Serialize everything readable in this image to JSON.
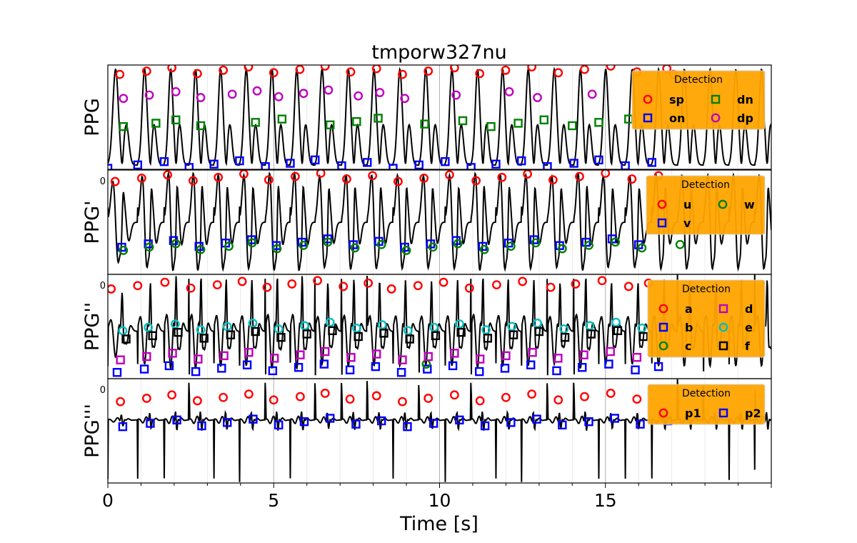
{
  "chart_data": {
    "type": "line",
    "title": "tmporw327nu",
    "xlabel": "Time [s]",
    "xlim": [
      0,
      20
    ],
    "xticks": [
      0,
      5,
      10,
      15
    ],
    "xtick_labels": [
      "0",
      "5",
      "10",
      "15"
    ],
    "grid": true,
    "colors": {
      "signal": "#000000",
      "legend_bg": "#FFA500",
      "red": "#FF0000",
      "blue": "#0000FF",
      "green": "#008000",
      "magenta": "#BF00BF",
      "cyan": "#00BFBF",
      "black": "#000000"
    },
    "panels": [
      {
        "ylabel": "PPG",
        "ytick_label": "",
        "legend": {
          "title": "Detection",
          "entries": [
            {
              "label": "sp",
              "marker": "circle",
              "color": "red"
            },
            {
              "label": "dn",
              "marker": "square",
              "color": "green"
            },
            {
              "label": "on",
              "marker": "square",
              "color": "blue"
            },
            {
              "label": "dp",
              "marker": "circle",
              "color": "magenta"
            }
          ]
        },
        "markers": {
          "sp": [
            0.36,
            1.17,
            1.93,
            2.7,
            3.48,
            4.24,
            5.0,
            5.79,
            6.55,
            7.32,
            8.1,
            8.88,
            9.66,
            10.45,
            11.21,
            11.99,
            12.78,
            13.58,
            14.37,
            15.16,
            15.95,
            16.85,
            17.05
          ],
          "on": [
            0.0,
            0.9,
            1.7,
            2.45,
            3.2,
            3.97,
            4.75,
            5.5,
            6.25,
            7.05,
            7.82,
            8.6,
            9.38,
            10.17,
            10.95,
            11.7,
            12.47,
            13.25,
            14.05,
            14.8,
            15.6,
            16.4
          ],
          "dn": [
            0.47,
            1.45,
            2.05,
            2.8,
            4.45,
            5.25,
            6.7,
            7.5,
            8.15,
            9.55,
            10.7,
            11.55,
            12.37,
            13.15,
            14.0,
            14.8,
            15.7
          ],
          "dp": [
            0.47,
            1.25,
            2.05,
            2.8,
            3.75,
            4.5,
            5.15,
            5.9,
            6.65,
            7.55,
            8.2,
            8.95,
            10.5,
            12.1,
            12.95,
            14.6
          ]
        }
      },
      {
        "ylabel": "PPG'",
        "ytick_label": "0",
        "legend": {
          "title": "Detection",
          "entries": [
            {
              "label": "u",
              "marker": "circle",
              "color": "red"
            },
            {
              "label": "w",
              "marker": "circle",
              "color": "green"
            },
            {
              "label": "v",
              "marker": "square",
              "color": "blue"
            }
          ]
        },
        "markers": {
          "u": [
            0.22,
            1.02,
            1.8,
            2.57,
            3.33,
            4.1,
            4.85,
            5.65,
            6.42,
            7.2,
            7.98,
            8.75,
            9.53,
            10.3,
            11.1,
            11.88,
            12.65,
            13.42,
            14.22,
            15.0,
            15.8,
            16.6
          ],
          "v": [
            0.42,
            1.22,
            1.98,
            2.75,
            3.55,
            4.33,
            5.08,
            5.85,
            6.63,
            7.4,
            8.17,
            8.95,
            9.73,
            10.5,
            11.3,
            12.08,
            12.85,
            13.62,
            14.42,
            15.2,
            16.0
          ],
          "w": [
            0.47,
            1.25,
            2.05,
            2.8,
            3.65,
            4.35,
            5.1,
            5.9,
            6.63,
            7.45,
            8.25,
            9.0,
            9.8,
            10.55,
            11.35,
            12.15,
            12.9,
            13.7,
            14.5,
            15.3,
            16.1,
            17.25
          ]
        }
      },
      {
        "ylabel": "PPG''",
        "ytick_label": "0",
        "legend": {
          "title": "Detection",
          "entries": [
            {
              "label": "a",
              "marker": "circle",
              "color": "red"
            },
            {
              "label": "d",
              "marker": "square",
              "color": "magenta"
            },
            {
              "label": "b",
              "marker": "square",
              "color": "blue"
            },
            {
              "label": "e",
              "marker": "circle",
              "color": "cyan"
            },
            {
              "label": "c",
              "marker": "circle",
              "color": "green"
            },
            {
              "label": "f",
              "marker": "square",
              "color": "black"
            }
          ]
        },
        "markers": {
          "a": [
            0.1,
            0.9,
            1.72,
            2.5,
            3.3,
            4.05,
            4.8,
            5.55,
            6.32,
            7.1,
            7.85,
            8.55,
            9.35,
            10.12,
            10.9,
            11.72,
            12.5,
            13.35,
            14.1,
            14.9,
            15.7,
            16.3
          ],
          "b": [
            0.28,
            1.1,
            1.85,
            2.65,
            3.43,
            4.2,
            4.97,
            5.75,
            6.52,
            7.3,
            8.07,
            8.85,
            9.63,
            10.4,
            11.2,
            11.97,
            12.75,
            13.53,
            14.3,
            15.1,
            15.9,
            16.6
          ],
          "c": [
            9.6
          ],
          "d": [
            0.38,
            1.17,
            1.95,
            2.72,
            3.5,
            4.25,
            5.02,
            5.8,
            6.55,
            7.33,
            8.1,
            8.88,
            9.66,
            10.45,
            11.22,
            12.0,
            12.8,
            13.57,
            14.35,
            15.15,
            15.95
          ],
          "e": [
            0.45,
            1.22,
            2.03,
            2.8,
            3.6,
            4.37,
            5.15,
            5.93,
            6.7,
            7.5,
            8.27,
            9.05,
            9.83,
            10.6,
            11.4,
            12.18,
            12.95,
            13.75,
            14.53,
            15.32,
            16.1
          ],
          "f": [
            0.55,
            1.35,
            2.12,
            2.9,
            3.7,
            4.45,
            5.22,
            6.0,
            6.77,
            7.55,
            8.32,
            9.1,
            9.88,
            10.65,
            11.45,
            12.23,
            13.0,
            13.78,
            14.57,
            15.37,
            16.15
          ]
        }
      },
      {
        "ylabel": "PPG'''",
        "ytick_label": "0",
        "legend": {
          "title": "Detection",
          "entries": [
            {
              "label": "p1",
              "marker": "circle",
              "color": "red"
            },
            {
              "label": "p2",
              "marker": "square",
              "color": "blue"
            }
          ]
        },
        "markers": {
          "p1": [
            0.38,
            1.17,
            1.93,
            2.7,
            3.48,
            4.25,
            5.0,
            5.8,
            6.55,
            7.3,
            8.1,
            8.88,
            9.66,
            10.45,
            11.22,
            12.0,
            12.78,
            13.58,
            14.37,
            15.16,
            15.95
          ],
          "p2": [
            0.45,
            1.28,
            2.08,
            2.83,
            3.6,
            4.38,
            5.15,
            5.92,
            6.7,
            7.48,
            8.25,
            9.03,
            9.82,
            10.6,
            11.37,
            12.15,
            12.93,
            13.7,
            14.5,
            15.28,
            16.05,
            16.88
          ]
        }
      }
    ]
  }
}
